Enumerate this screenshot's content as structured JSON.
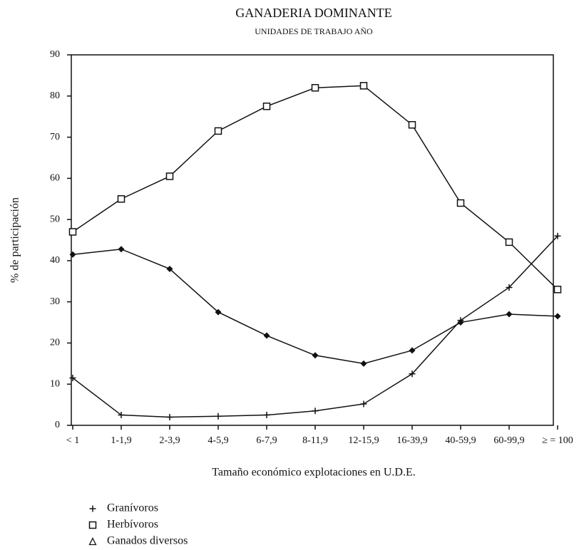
{
  "chart_data": {
    "type": "line",
    "title": "GANADERIA DOMINANTE",
    "subtitle": "UNIDADES DE TRABAJO AÑO",
    "y_label": "% de participación",
    "x_label": "Tamaño económico explotaciones en U.D.E.",
    "categories": [
      "< 1",
      "1-1,9",
      "2-3,9",
      "4-5,9",
      "6-7,9",
      "8-11,9",
      "12-15,9",
      "16-39,9",
      "40-59,9",
      "60-99,9",
      "≥ = 100"
    ],
    "ylim": [
      0,
      90
    ],
    "yticks": [
      0,
      10,
      20,
      30,
      40,
      50,
      60,
      70,
      80,
      90
    ],
    "series": [
      {
        "name": "Granívoros",
        "color": "#111111",
        "marker": "plus",
        "legend_marker": "plus",
        "values": [
          11.5,
          2.5,
          2,
          2.2,
          2.5,
          3.5,
          5.2,
          12.5,
          25.5,
          33.5,
          46
        ]
      },
      {
        "name": "Herbívoros",
        "color": "#111111",
        "marker": "square",
        "legend_marker": "square",
        "values": [
          47,
          55,
          60.5,
          71.5,
          77.5,
          82,
          82.5,
          73,
          54,
          44.5,
          33
        ]
      },
      {
        "name": "Ganados diversos",
        "color": "#111111",
        "marker": "diamond",
        "legend_marker": "triangle",
        "values": [
          41.5,
          42.8,
          38,
          27.5,
          21.8,
          17,
          15,
          18.2,
          25,
          27,
          26.5
        ]
      }
    ]
  }
}
